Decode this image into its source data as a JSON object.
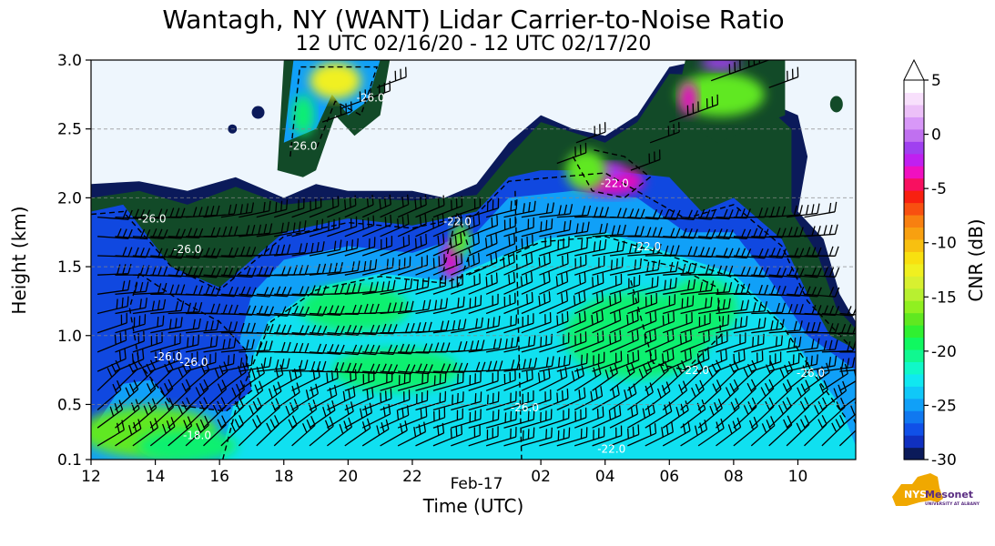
{
  "chart_data": {
    "type": "heatmap",
    "title": "Wantagh, NY (WANT) Lidar Carrier-to-Noise Ratio",
    "subtitle": "12 UTC 02/16/20 - 12 UTC 02/17/20",
    "xlabel": "Time (UTC)",
    "ylabel": "Height (km)",
    "x_ticks": [
      "12",
      "14",
      "16",
      "18",
      "20",
      "22",
      "02",
      "04",
      "06",
      "08",
      "10"
    ],
    "x_tick_hours": [
      12,
      14,
      16,
      18,
      20,
      22,
      26,
      28,
      30,
      32,
      34
    ],
    "x_date_label": "Feb-17",
    "x_date_hour": 24,
    "xlim_hours": [
      12,
      35.8
    ],
    "y_ticks": [
      "0.1",
      "0.5",
      "1.0",
      "1.5",
      "2.0",
      "2.5",
      "3.0"
    ],
    "y_tick_values": [
      0.1,
      0.5,
      1.0,
      1.5,
      2.0,
      2.5,
      3.0
    ],
    "ylim": [
      0.1,
      3.0
    ],
    "gridlines_y": [
      0.5,
      1.0,
      1.5,
      2.0,
      2.5
    ],
    "colorbar": {
      "label": "CNR (dB)",
      "ticks": [
        "5",
        "0",
        "-5",
        "-10",
        "-15",
        "-20",
        "-25",
        "-30"
      ],
      "tick_values": [
        5,
        0,
        -5,
        -10,
        -15,
        -20,
        -25,
        -30
      ],
      "range": [
        -30,
        5
      ],
      "extend": "max"
    },
    "contour_labels": [
      {
        "text": "-26.0",
        "hour": 13.9,
        "km": 1.82
      },
      {
        "text": "-26.0",
        "hour": 15.0,
        "km": 1.6
      },
      {
        "text": "-26.0",
        "hour": 14.4,
        "km": 0.82
      },
      {
        "text": "-26.0",
        "hour": 15.2,
        "km": 0.78
      },
      {
        "text": "-18.0",
        "hour": 15.3,
        "km": 0.25
      },
      {
        "text": "-26.0",
        "hour": 18.6,
        "km": 2.35
      },
      {
        "text": "-26.0",
        "hour": 20.7,
        "km": 2.7
      },
      {
        "text": "-22.0",
        "hour": 23.4,
        "km": 1.8
      },
      {
        "text": "-26.0",
        "hour": 25.5,
        "km": 0.45
      },
      {
        "text": "-22.0",
        "hour": 28.3,
        "km": 2.08
      },
      {
        "text": "-22.0",
        "hour": 29.3,
        "km": 1.62
      },
      {
        "text": "-22.0",
        "hour": 30.8,
        "km": 0.72
      },
      {
        "text": "-26.0",
        "hour": 34.4,
        "km": 0.7
      },
      {
        "text": "-22.0",
        "hour": 28.2,
        "km": 0.15
      }
    ],
    "colorbar_colors": [
      "#0b1a5a",
      "#1030c0",
      "#1050e8",
      "#1078f0",
      "#10a0f8",
      "#10c8f8",
      "#10e8f0",
      "#10f8c8",
      "#10f890",
      "#10f860",
      "#30f030",
      "#60e820",
      "#90f020",
      "#b8f030",
      "#d8f030",
      "#f0f020",
      "#f8e010",
      "#f8c010",
      "#f8a010",
      "#f88010",
      "#f85010",
      "#f82010",
      "#f81060",
      "#f010c0",
      "#c020f0",
      "#a040f0",
      "#c070f0",
      "#d898f8",
      "#ecc0f8",
      "#f8e0fc",
      "#ffffff"
    ],
    "field_colors": {
      "background": "#eef6fd",
      "edge": "#0b1a5a",
      "low": "#124a28",
      "mid_blue": "#1048e0",
      "light_blue": "#10a0f8",
      "cyan": "#10e0f0",
      "green": "#10f070",
      "yellow_green": "#60e820",
      "yellow": "#f0f020",
      "magenta": "#e010c0",
      "purple": "#a040f0"
    }
  },
  "logo": {
    "text": "NYS",
    "name": "Mesonet",
    "sub": "UNIVERSITY AT ALBANY",
    "brand_color": "#5a2d82",
    "state_color": "#f0a800"
  }
}
